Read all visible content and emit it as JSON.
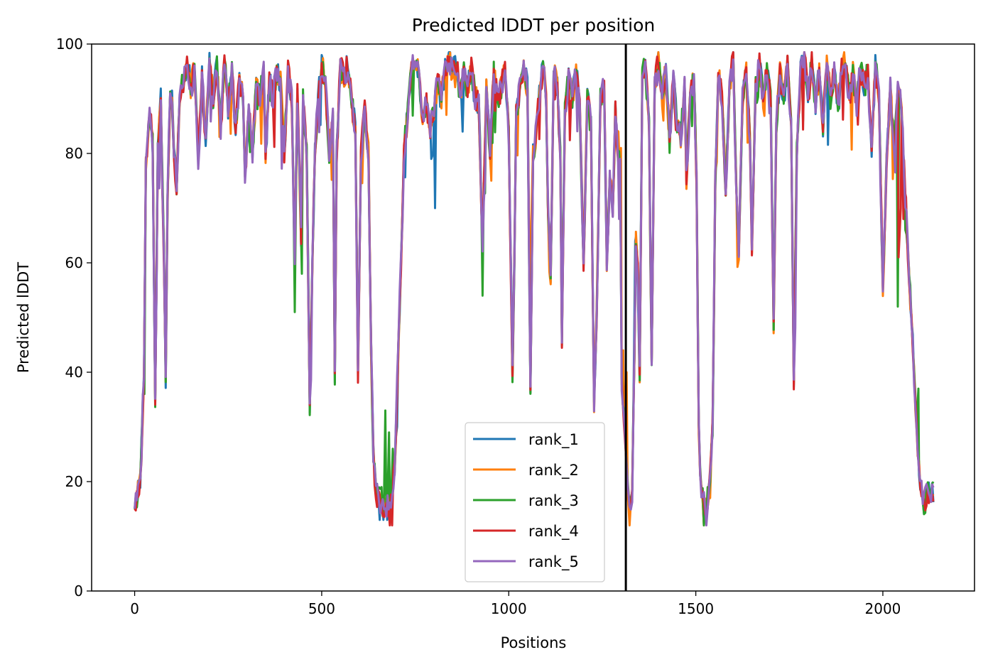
{
  "chart_data": {
    "type": "line",
    "title": "Predicted lDDT per position",
    "xlabel": "Positions",
    "ylabel": "Predicted lDDT",
    "xlim": [
      -115,
      2245
    ],
    "ylim": [
      0,
      100
    ],
    "xticks": [
      0,
      500,
      1000,
      1500,
      2000
    ],
    "yticks": [
      0,
      20,
      40,
      60,
      80,
      100
    ],
    "grid": false,
    "legend_position": "lower-center",
    "vline_x": 1313,
    "base_profile": [
      [
        0,
        16
      ],
      [
        15,
        20
      ],
      [
        25,
        40
      ],
      [
        30,
        78
      ],
      [
        40,
        88
      ],
      [
        48,
        82
      ],
      [
        55,
        35
      ],
      [
        62,
        80
      ],
      [
        70,
        90
      ],
      [
        78,
        62
      ],
      [
        83,
        39
      ],
      [
        88,
        72
      ],
      [
        95,
        92
      ],
      [
        100,
        90
      ],
      [
        105,
        80
      ],
      [
        112,
        74
      ],
      [
        120,
        90
      ],
      [
        130,
        93
      ],
      [
        140,
        97
      ],
      [
        150,
        92
      ],
      [
        160,
        95
      ],
      [
        170,
        78
      ],
      [
        180,
        94
      ],
      [
        190,
        82
      ],
      [
        200,
        97
      ],
      [
        210,
        90
      ],
      [
        220,
        96
      ],
      [
        230,
        84
      ],
      [
        240,
        97
      ],
      [
        250,
        88
      ],
      [
        260,
        95
      ],
      [
        270,
        85
      ],
      [
        280,
        93
      ],
      [
        290,
        90
      ],
      [
        295,
        76
      ],
      [
        305,
        88
      ],
      [
        315,
        80
      ],
      [
        325,
        93
      ],
      [
        335,
        90
      ],
      [
        345,
        95
      ],
      [
        350,
        79
      ],
      [
        360,
        93
      ],
      [
        370,
        90
      ],
      [
        380,
        95
      ],
      [
        390,
        93
      ],
      [
        400,
        80
      ],
      [
        410,
        95
      ],
      [
        420,
        90
      ],
      [
        428,
        60
      ],
      [
        435,
        91
      ],
      [
        445,
        65
      ],
      [
        450,
        90
      ],
      [
        460,
        80
      ],
      [
        468,
        33
      ],
      [
        475,
        60
      ],
      [
        482,
        80
      ],
      [
        490,
        90
      ],
      [
        500,
        96
      ],
      [
        510,
        93
      ],
      [
        520,
        80
      ],
      [
        530,
        87
      ],
      [
        535,
        39
      ],
      [
        540,
        80
      ],
      [
        550,
        96
      ],
      [
        560,
        94
      ],
      [
        570,
        96
      ],
      [
        580,
        90
      ],
      [
        590,
        84
      ],
      [
        597,
        40
      ],
      [
        605,
        80
      ],
      [
        615,
        88
      ],
      [
        625,
        80
      ],
      [
        632,
        45
      ],
      [
        638,
        25
      ],
      [
        645,
        18
      ],
      [
        660,
        16
      ],
      [
        670,
        15
      ],
      [
        685,
        17
      ],
      [
        695,
        22
      ],
      [
        705,
        45
      ],
      [
        712,
        60
      ],
      [
        720,
        80
      ],
      [
        730,
        88
      ],
      [
        740,
        95
      ],
      [
        750,
        97
      ],
      [
        760,
        94
      ],
      [
        770,
        85
      ],
      [
        780,
        90
      ],
      [
        790,
        84
      ],
      [
        800,
        88
      ],
      [
        810,
        93
      ],
      [
        820,
        90
      ],
      [
        830,
        96
      ],
      [
        840,
        97
      ],
      [
        850,
        95
      ],
      [
        860,
        96
      ],
      [
        870,
        91
      ],
      [
        880,
        95
      ],
      [
        890,
        91
      ],
      [
        900,
        96
      ],
      [
        910,
        90
      ],
      [
        920,
        89
      ],
      [
        930,
        64
      ],
      [
        940,
        92
      ],
      [
        950,
        80
      ],
      [
        960,
        95
      ],
      [
        970,
        90
      ],
      [
        980,
        92
      ],
      [
        990,
        95
      ],
      [
        1000,
        83
      ],
      [
        1010,
        40
      ],
      [
        1015,
        60
      ],
      [
        1020,
        88
      ],
      [
        1030,
        92
      ],
      [
        1040,
        96
      ],
      [
        1050,
        92
      ],
      [
        1058,
        38
      ],
      [
        1065,
        80
      ],
      [
        1075,
        85
      ],
      [
        1085,
        93
      ],
      [
        1095,
        96
      ],
      [
        1100,
        90
      ],
      [
        1105,
        70
      ],
      [
        1112,
        58
      ],
      [
        1120,
        95
      ],
      [
        1130,
        92
      ],
      [
        1138,
        80
      ],
      [
        1142,
        45
      ],
      [
        1150,
        88
      ],
      [
        1160,
        94
      ],
      [
        1170,
        90
      ],
      [
        1180,
        95
      ],
      [
        1190,
        88
      ],
      [
        1200,
        60
      ],
      [
        1210,
        90
      ],
      [
        1220,
        85
      ],
      [
        1228,
        34
      ],
      [
        1235,
        50
      ],
      [
        1245,
        90
      ],
      [
        1255,
        92
      ],
      [
        1262,
        60
      ],
      [
        1270,
        75
      ],
      [
        1278,
        70
      ],
      [
        1285,
        88
      ],
      [
        1292,
        80
      ],
      [
        1298,
        78
      ],
      [
        1302,
        38
      ],
      [
        1308,
        32
      ],
      [
        1313,
        24
      ],
      [
        1318,
        18
      ],
      [
        1323,
        14
      ],
      [
        1330,
        18
      ],
      [
        1336,
        44
      ],
      [
        1340,
        64
      ],
      [
        1345,
        58
      ],
      [
        1350,
        40
      ],
      [
        1357,
        95
      ],
      [
        1365,
        96
      ],
      [
        1375,
        85
      ],
      [
        1382,
        40
      ],
      [
        1390,
        92
      ],
      [
        1400,
        97
      ],
      [
        1410,
        90
      ],
      [
        1420,
        95
      ],
      [
        1430,
        82
      ],
      [
        1440,
        94
      ],
      [
        1450,
        85
      ],
      [
        1460,
        83
      ],
      [
        1470,
        92
      ],
      [
        1475,
        75
      ],
      [
        1485,
        90
      ],
      [
        1495,
        94
      ],
      [
        1502,
        75
      ],
      [
        1508,
        30
      ],
      [
        1515,
        17
      ],
      [
        1525,
        15
      ],
      [
        1535,
        18
      ],
      [
        1545,
        30
      ],
      [
        1552,
        75
      ],
      [
        1560,
        95
      ],
      [
        1570,
        90
      ],
      [
        1580,
        73
      ],
      [
        1590,
        92
      ],
      [
        1600,
        97
      ],
      [
        1608,
        75
      ],
      [
        1615,
        62
      ],
      [
        1625,
        90
      ],
      [
        1635,
        95
      ],
      [
        1645,
        82
      ],
      [
        1650,
        62
      ],
      [
        1660,
        92
      ],
      [
        1670,
        97
      ],
      [
        1680,
        90
      ],
      [
        1690,
        95
      ],
      [
        1700,
        90
      ],
      [
        1708,
        48
      ],
      [
        1715,
        85
      ],
      [
        1725,
        95
      ],
      [
        1735,
        90
      ],
      [
        1745,
        96
      ],
      [
        1755,
        85
      ],
      [
        1762,
        38
      ],
      [
        1770,
        80
      ],
      [
        1780,
        95
      ],
      [
        1790,
        98
      ],
      [
        1800,
        90
      ],
      [
        1810,
        97
      ],
      [
        1820,
        88
      ],
      [
        1830,
        95
      ],
      [
        1840,
        85
      ],
      [
        1850,
        97
      ],
      [
        1860,
        90
      ],
      [
        1870,
        95
      ],
      [
        1880,
        88
      ],
      [
        1890,
        96
      ],
      [
        1900,
        97
      ],
      [
        1910,
        90
      ],
      [
        1920,
        95
      ],
      [
        1930,
        88
      ],
      [
        1940,
        96
      ],
      [
        1950,
        92
      ],
      [
        1960,
        95
      ],
      [
        1970,
        80
      ],
      [
        1980,
        96
      ],
      [
        1990,
        90
      ],
      [
        2000,
        55
      ],
      [
        2010,
        78
      ],
      [
        2020,
        92
      ],
      [
        2030,
        80
      ],
      [
        2040,
        92
      ],
      [
        2050,
        88
      ],
      [
        2060,
        72
      ],
      [
        2070,
        58
      ],
      [
        2080,
        45
      ],
      [
        2090,
        30
      ],
      [
        2100,
        20
      ],
      [
        2110,
        16
      ],
      [
        2120,
        18
      ],
      [
        2135,
        18
      ]
    ],
    "series": [
      {
        "name": "rank_1",
        "color": "#1f77b4",
        "seed": 11,
        "overrides": [
          [
            655,
            16,
            13
          ],
          [
            665,
            16,
            13
          ],
          [
            675,
            15,
            13
          ],
          [
            793,
            86,
            79
          ],
          [
            798,
            88,
            80
          ],
          [
            803,
            84,
            70
          ],
          [
            1338,
            44,
            64
          ],
          [
            1343,
            60,
            62
          ]
        ]
      },
      {
        "name": "rank_2",
        "color": "#ff7f0e",
        "seed": 23,
        "overrides": [
          [
            1293,
            84,
            84
          ],
          [
            1300,
            78,
            81
          ],
          [
            1306,
            45,
            44
          ],
          [
            1315,
            30,
            40
          ],
          [
            1060,
            70,
            67
          ]
        ]
      },
      {
        "name": "rank_3",
        "color": "#2ca02c",
        "seed": 37,
        "overrides": [
          [
            22,
            30,
            36
          ],
          [
            26,
            40,
            36
          ],
          [
            428,
            60,
            51
          ],
          [
            447,
            62,
            58
          ],
          [
            660,
            16,
            19
          ],
          [
            670,
            15,
            33
          ],
          [
            680,
            17,
            29
          ],
          [
            690,
            20,
            26
          ],
          [
            930,
            64,
            54
          ],
          [
            1480,
            80,
            85
          ],
          [
            1490,
            85,
            85
          ],
          [
            2040,
            92,
            52
          ],
          [
            2060,
            72,
            66
          ],
          [
            2095,
            25,
            37
          ]
        ]
      },
      {
        "name": "rank_4",
        "color": "#d62728",
        "seed": 53,
        "overrides": [
          [
            1302,
            38,
            39
          ],
          [
            2042,
            75,
            61
          ],
          [
            2048,
            78,
            70
          ],
          [
            2055,
            76,
            68
          ],
          [
            2062,
            72,
            72
          ]
        ]
      },
      {
        "name": "rank_5",
        "color": "#9467bd",
        "seed": 71,
        "overrides": []
      }
    ]
  }
}
